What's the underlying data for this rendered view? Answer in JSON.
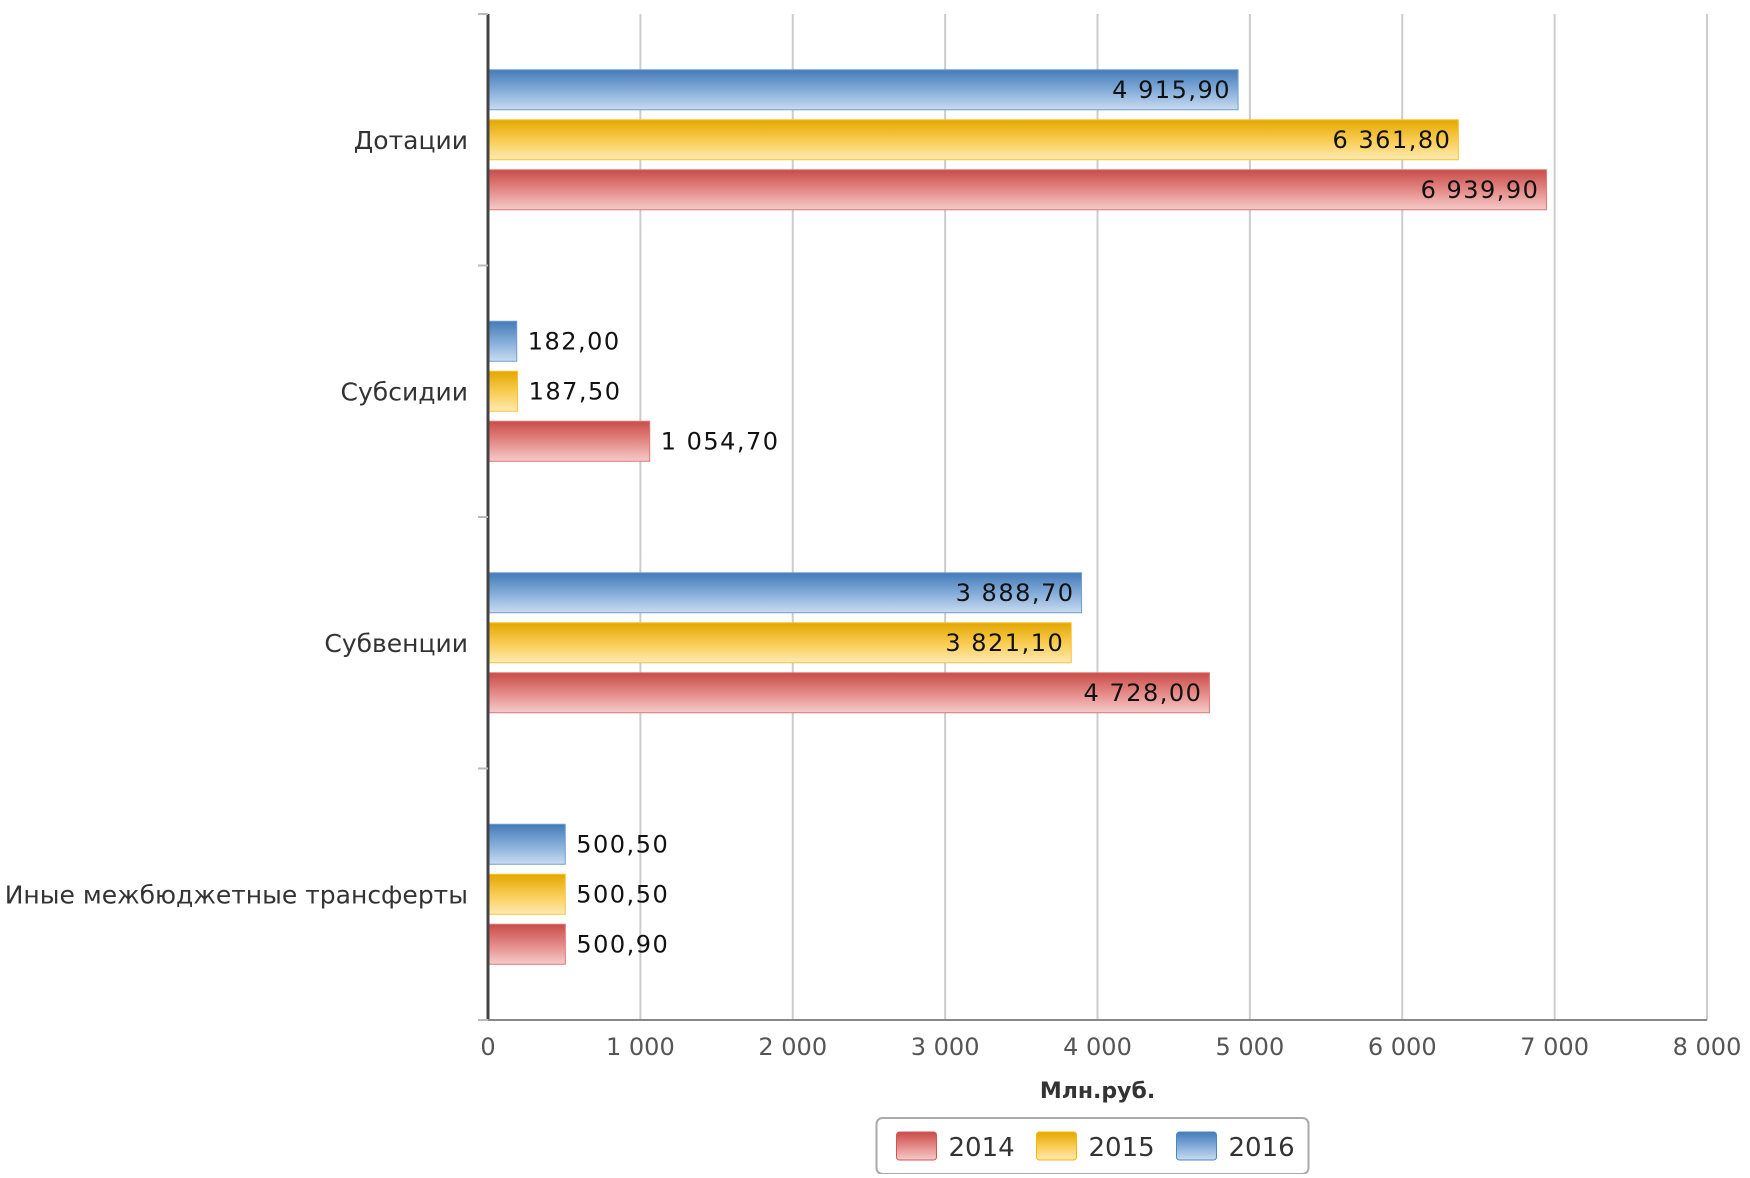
{
  "chart_data": {
    "type": "bar",
    "orientation": "horizontal",
    "categories": [
      "Дотации",
      "Субсидии",
      "Субвенции",
      "Иные межбюджетные трансферты"
    ],
    "series": [
      {
        "name": "2016",
        "color": "#4a86c8",
        "values": [
          4915.9,
          182.0,
          3888.7,
          500.5
        ],
        "labels": [
          "4 915,90",
          "182,00",
          "3 888,70",
          "500,50"
        ]
      },
      {
        "name": "2015",
        "color": "#f7b500",
        "values": [
          6361.8,
          187.5,
          3821.1,
          500.5
        ],
        "labels": [
          "6 361,80",
          "187,50",
          "3 821,10",
          "500,50"
        ]
      },
      {
        "name": "2014",
        "color": "#d9534f",
        "values": [
          6939.9,
          1054.7,
          4728.0,
          500.9
        ],
        "labels": [
          "6 939,90",
          "1 054,70",
          "4 728,00",
          "500,90"
        ]
      }
    ],
    "xlabel": "Млн.руб.",
    "ylabel": "",
    "xlim": [
      0,
      8000
    ],
    "xticks": [
      0,
      1000,
      2000,
      3000,
      4000,
      5000,
      6000,
      7000,
      8000
    ],
    "xtick_labels": [
      "0",
      "1 000",
      "2 000",
      "3 000",
      "4 000",
      "5 000",
      "6 000",
      "7 000",
      "8 000"
    ],
    "grid": true,
    "legend": {
      "placement": "bottom-center",
      "order": [
        "2014",
        "2015",
        "2016"
      ]
    }
  }
}
